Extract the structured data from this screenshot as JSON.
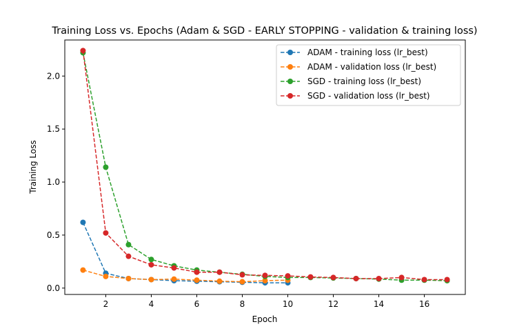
{
  "chart_data": {
    "type": "line",
    "title": "Training Loss vs. Epochs (Adam & SGD - EARLY STOPPING - validation & training loss)",
    "xlabel": "Epoch",
    "ylabel": "Training Loss",
    "xlim": [
      0.2,
      17.8
    ],
    "ylim": [
      -0.06,
      2.34
    ],
    "xticks": [
      2,
      4,
      6,
      8,
      10,
      12,
      14,
      16
    ],
    "yticks": [
      0.0,
      0.5,
      1.0,
      1.5,
      2.0
    ],
    "ytick_labels": [
      "0.0",
      "0.5",
      "1.0",
      "1.5",
      "2.0"
    ],
    "grid": false,
    "legend_position": "top-right",
    "line_style": "dashed",
    "marker": "circle",
    "series": [
      {
        "name": "ADAM - training loss (lr_best)",
        "color": "#1f77b4",
        "x": [
          1,
          2,
          3,
          4,
          5,
          6,
          7,
          8,
          9,
          10
        ],
        "y": [
          0.62,
          0.14,
          0.09,
          0.08,
          0.07,
          0.065,
          0.06,
          0.055,
          0.05,
          0.05
        ]
      },
      {
        "name": "ADAM - validation loss (lr_best)",
        "color": "#ff7f0e",
        "x": [
          1,
          2,
          3,
          4,
          5,
          6,
          7,
          8,
          9,
          10
        ],
        "y": [
          0.17,
          0.11,
          0.09,
          0.08,
          0.085,
          0.075,
          0.065,
          0.06,
          0.07,
          0.075
        ]
      },
      {
        "name": "SGD - training loss (lr_best)",
        "color": "#2ca02c",
        "x": [
          1,
          2,
          3,
          4,
          5,
          6,
          7,
          8,
          9,
          10,
          11,
          12,
          13,
          14,
          15,
          16,
          17
        ],
        "y": [
          2.22,
          1.14,
          0.41,
          0.27,
          0.21,
          0.17,
          0.15,
          0.13,
          0.11,
          0.1,
          0.1,
          0.095,
          0.09,
          0.085,
          0.075,
          0.075,
          0.07
        ]
      },
      {
        "name": "SGD - validation loss (lr_best)",
        "color": "#d62728",
        "x": [
          1,
          2,
          3,
          4,
          5,
          6,
          7,
          8,
          9,
          10,
          11,
          12,
          13,
          14,
          15,
          16,
          17
        ],
        "y": [
          2.24,
          0.52,
          0.3,
          0.22,
          0.19,
          0.15,
          0.15,
          0.125,
          0.12,
          0.115,
          0.105,
          0.1,
          0.09,
          0.09,
          0.1,
          0.08,
          0.08
        ]
      }
    ]
  }
}
